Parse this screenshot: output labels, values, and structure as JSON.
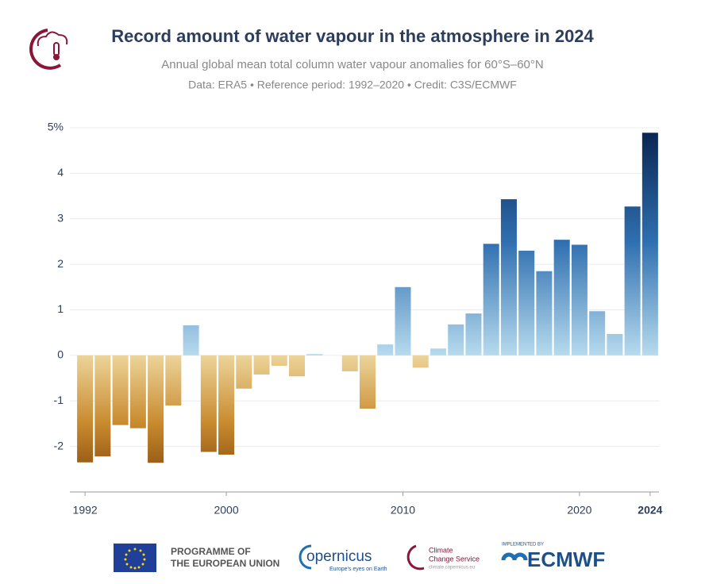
{
  "chart_data": {
    "type": "bar",
    "title": "Record amount of water vapour in the atmosphere in 2024",
    "subtitle": "Annual global mean total column water vapour anomalies for 60°S–60°N",
    "source": "Data: ERA5 • Reference period: 1992–2020 • Credit: C3S/ECMWF",
    "x": [
      1992,
      1993,
      1994,
      1995,
      1996,
      1997,
      1998,
      1999,
      2000,
      2001,
      2002,
      2003,
      2004,
      2005,
      2006,
      2007,
      2008,
      2009,
      2010,
      2011,
      2012,
      2013,
      2014,
      2015,
      2016,
      2017,
      2018,
      2019,
      2020,
      2021,
      2022,
      2023,
      2024
    ],
    "values": [
      -2.35,
      -2.22,
      -1.53,
      -1.6,
      -2.36,
      -1.1,
      0.66,
      -2.12,
      -2.18,
      -0.73,
      -0.42,
      -0.23,
      -0.46,
      0.03,
      0,
      -0.35,
      -1.17,
      0.24,
      1.5,
      -0.27,
      0.15,
      0.68,
      0.92,
      2.45,
      3.43,
      2.3,
      1.85,
      2.54,
      2.43,
      0.97,
      0.47,
      3.27,
      4.89
    ],
    "xlim": [
      1991.5,
      2024.5
    ],
    "xticks": [
      1992,
      2000,
      2010,
      2020,
      2024
    ],
    "ylim": [
      -3,
      5
    ],
    "yticks": [
      -2,
      -1,
      0,
      1,
      2,
      3,
      4,
      {
        "value": 5,
        "label": "5%"
      }
    ],
    "grid": true,
    "positive_colors": [
      "#b7dbee",
      "#2f6fb0",
      "#08234f"
    ],
    "negative_colors": [
      "#ecd49a",
      "#c88a2e",
      "#7a3f06"
    ]
  },
  "footer": {
    "eu": [
      "PROGRAMME OF",
      "THE EUROPEAN UNION"
    ],
    "copernicus": "opernicus",
    "copernicus_tagline": "Europe's eyes on Earth",
    "c3s": [
      "Climate",
      "Change Service"
    ],
    "c3s_url": "climate.copernicus.eu",
    "implemented": "IMPLEMENTED BY",
    "ecmwf": "ECMWF"
  }
}
